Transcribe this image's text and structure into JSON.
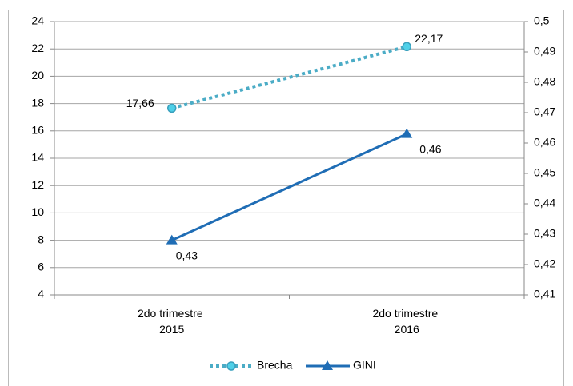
{
  "chart_data": {
    "type": "line",
    "categories": [
      "2do trimestre 2015",
      "2do trimestre 2016"
    ],
    "series": [
      {
        "name": "Brecha",
        "color": "#4bacc6",
        "values": [
          17.66,
          22.17
        ],
        "value_labels": [
          "17,66",
          "22,17"
        ]
      },
      {
        "name": "GINI",
        "color": "#1f6db5",
        "axis": "y2",
        "values": [
          0.428,
          0.463
        ],
        "value_labels": [
          "0,43",
          "0,46"
        ]
      }
    ],
    "ylim": [
      4,
      24
    ],
    "yticks": [
      4,
      6,
      8,
      10,
      12,
      14,
      16,
      18,
      20,
      22,
      24
    ],
    "y2lim": [
      0.41,
      0.5
    ],
    "y2ticks": [
      {
        "value": 0.41,
        "label": "0,41"
      },
      {
        "value": 0.42,
        "label": "0,42"
      },
      {
        "value": 0.43,
        "label": "0,43"
      },
      {
        "value": 0.44,
        "label": "0,44"
      },
      {
        "value": 0.45,
        "label": "0,45"
      },
      {
        "value": 0.46,
        "label": "0,46"
      },
      {
        "value": 0.47,
        "label": "0,47"
      },
      {
        "value": 0.48,
        "label": "0,48"
      },
      {
        "value": 0.49,
        "label": "0,49"
      },
      {
        "value": 0.5,
        "label": "0,5"
      }
    ],
    "grid": true,
    "legend": "bottom"
  }
}
